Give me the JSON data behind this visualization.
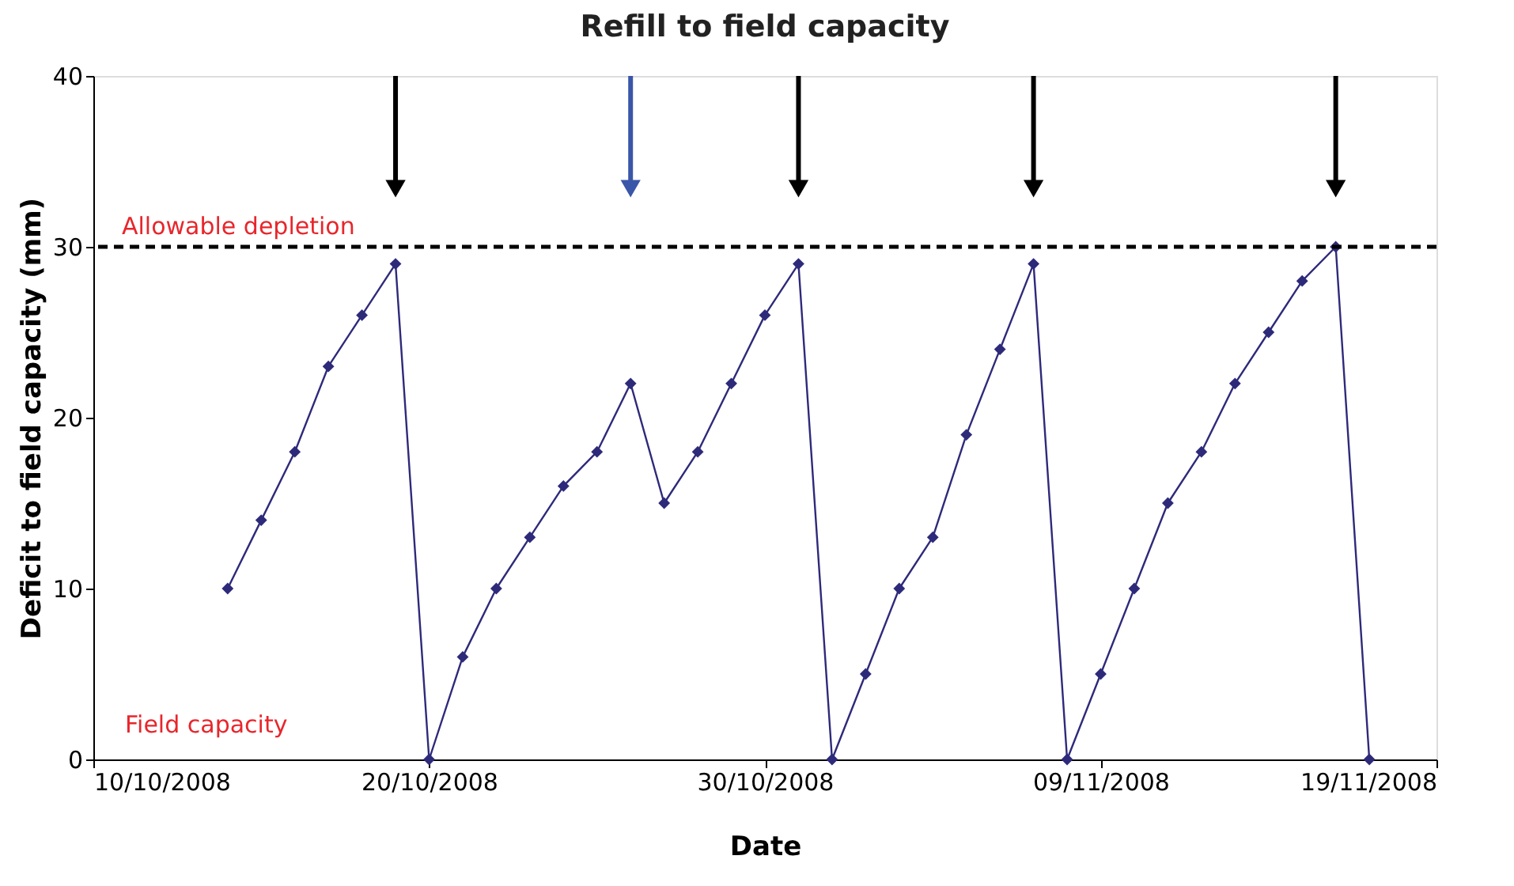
{
  "chart_data": {
    "type": "line",
    "title": "Refill to field capacity",
    "xlabel": "Date",
    "ylabel": "Deficit to field capacity (mm)",
    "xlim": [
      "2008-10-10",
      "2008-11-19"
    ],
    "xticks": [
      {
        "value": "2008-10-10",
        "label": "10/10/2008"
      },
      {
        "value": "2008-10-20",
        "label": "20/10/2008"
      },
      {
        "value": "2008-10-30",
        "label": "30/10/2008"
      },
      {
        "value": "2008-11-09",
        "label": "09/11/2008"
      },
      {
        "value": "2008-11-19",
        "label": "19/11/2008"
      }
    ],
    "ylim": [
      0,
      40
    ],
    "yticks": [
      0,
      10,
      20,
      30,
      40
    ],
    "grid": false,
    "series": [
      {
        "type": "line",
        "color": "#2e2a7a",
        "marker": "diamond",
        "line_style": "solid",
        "x": [
          "2008-10-14",
          "2008-10-15",
          "2008-10-16",
          "2008-10-17",
          "2008-10-18",
          "2008-10-19",
          "2008-10-20",
          "2008-10-21",
          "2008-10-22",
          "2008-10-23",
          "2008-10-24",
          "2008-10-25",
          "2008-10-26",
          "2008-10-27",
          "2008-10-28",
          "2008-10-29",
          "2008-10-30",
          "2008-10-31",
          "2008-11-01",
          "2008-11-02",
          "2008-11-03",
          "2008-11-04",
          "2008-11-05",
          "2008-11-06",
          "2008-11-07",
          "2008-11-08",
          "2008-11-09",
          "2008-11-10",
          "2008-11-11",
          "2008-11-12",
          "2008-11-13",
          "2008-11-14",
          "2008-11-15",
          "2008-11-16",
          "2008-11-17"
        ],
        "values": [
          10,
          14,
          18,
          23,
          26,
          29,
          0,
          6,
          10,
          13,
          16,
          18,
          22,
          15,
          18,
          22,
          26,
          29,
          0,
          5,
          10,
          13,
          19,
          24,
          29,
          0,
          5,
          10,
          15,
          18,
          22,
          25,
          28,
          30,
          0
        ]
      },
      {
        "type": "scatter",
        "color": "#000000",
        "marker": "triangle",
        "x": [
          "2008-10-19",
          "2008-10-31",
          "2008-11-07",
          "2008-11-16"
        ],
        "values": [
          33.4,
          33.4,
          33.4,
          33.4
        ],
        "errors": [
          [
            33.4,
            40
          ],
          [
            33.4,
            40
          ],
          [
            33.4,
            40
          ],
          [
            33.4,
            40
          ]
        ]
      },
      {
        "type": "scatter",
        "color": "#3a56a8",
        "marker": "triangle",
        "x": [
          "2008-10-26"
        ],
        "values": [
          33.4
        ],
        "errors": [
          [
            33.4,
            40
          ]
        ]
      }
    ],
    "ref_lines": [
      {
        "axis": "y",
        "value": 30,
        "label": "Allowable depletion",
        "color": "#000000",
        "line_style": "dashed"
      }
    ],
    "annotations": [
      "Field capacity"
    ]
  }
}
